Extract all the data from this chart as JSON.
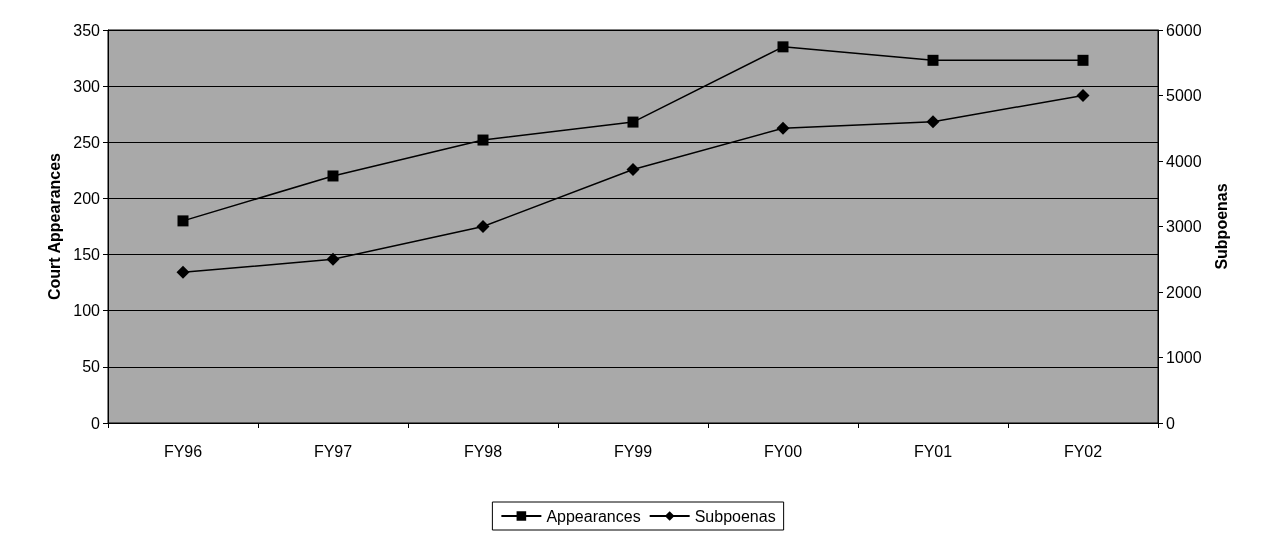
{
  "chart_data": {
    "type": "line",
    "ylabel": "Court Appearances",
    "y2label": "Subpoenas",
    "categories": [
      "FY96",
      "FY97",
      "FY98",
      "FY99",
      "FY00",
      "FY01",
      "FY02"
    ],
    "series": [
      {
        "name": "Appearances",
        "color": "#000000",
        "marker": "square",
        "values": [
          180,
          220,
          252,
          268,
          335,
          323,
          323
        ]
      },
      {
        "name": "Subpoenas",
        "color": "#000000",
        "marker": "diamond",
        "axis": "y2",
        "values": [
          2300,
          2500,
          3000,
          3870,
          4500,
          4600,
          5000
        ]
      }
    ],
    "ylim": [
      0,
      350
    ],
    "yticks": [
      0,
      50,
      100,
      150,
      200,
      250,
      300,
      350
    ],
    "y2lim": [
      0,
      6000
    ],
    "y2ticks": [
      0,
      1000,
      2000,
      3000,
      4000,
      5000,
      6000
    ],
    "grid": "y",
    "legend": "bottom",
    "line_style": "solid"
  }
}
